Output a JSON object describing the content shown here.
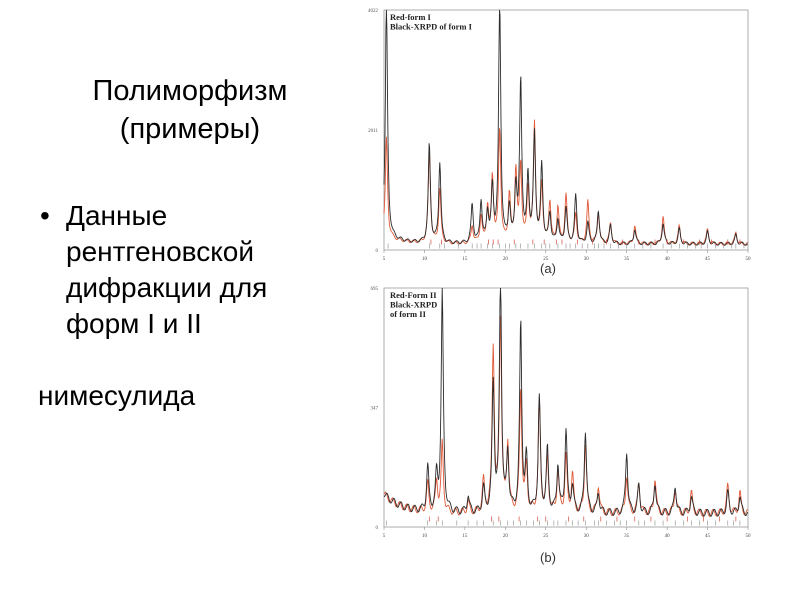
{
  "title": {
    "line1": "Полиморфизм",
    "line2": "(примеры)"
  },
  "bullet": {
    "symbol": "•",
    "lines": [
      "Данные",
      "рентгеновской",
      "дифракции для",
      "форм I и II"
    ]
  },
  "trailing": "нимесулида",
  "colors": {
    "red": "#e05a3a",
    "black": "#2b2b2b",
    "frame": "#9a9a9a",
    "tick_marks_red": "#d24a3a"
  },
  "chart_data": [
    {
      "type": "line",
      "caption": "(a)",
      "legend": [
        "Red-form I",
        "Black-XRPD of form I"
      ],
      "y_tick_labels": [
        "0",
        "2011",
        "4022"
      ],
      "x_tick_labels": [
        "5",
        "10",
        "15",
        "20",
        "25",
        "30",
        "35",
        "40",
        "45",
        "50"
      ],
      "xlim": [
        5,
        50
      ],
      "ylim": [
        0,
        4022
      ],
      "baseline_y": 100,
      "peaks": [
        {
          "x": 5.3,
          "red": 1650,
          "black": 3950
        },
        {
          "x": 10.6,
          "red": 1550,
          "black": 1650
        },
        {
          "x": 11.9,
          "red": 900,
          "black": 1350
        },
        {
          "x": 15.9,
          "red": 300,
          "black": 650
        },
        {
          "x": 17.0,
          "red": 450,
          "black": 700
        },
        {
          "x": 17.8,
          "red": 600,
          "black": 500
        },
        {
          "x": 18.4,
          "red": 1100,
          "black": 900
        },
        {
          "x": 19.3,
          "red": 1900,
          "black": 4000
        },
        {
          "x": 20.5,
          "red": 800,
          "black": 600
        },
        {
          "x": 21.3,
          "red": 1200,
          "black": 900
        },
        {
          "x": 21.9,
          "red": 1300,
          "black": 2700
        },
        {
          "x": 22.8,
          "red": 900,
          "black": 1100
        },
        {
          "x": 23.6,
          "red": 2000,
          "black": 1800
        },
        {
          "x": 24.5,
          "red": 1000,
          "black": 1300
        },
        {
          "x": 25.5,
          "red": 700,
          "black": 500
        },
        {
          "x": 26.5,
          "red": 600,
          "black": 400
        },
        {
          "x": 27.5,
          "red": 800,
          "black": 600
        },
        {
          "x": 28.7,
          "red": 500,
          "black": 800
        },
        {
          "x": 30.2,
          "red": 700,
          "black": 350
        },
        {
          "x": 31.5,
          "red": 500,
          "black": 550
        },
        {
          "x": 33.0,
          "red": 350,
          "black": 300
        },
        {
          "x": 36.0,
          "red": 300,
          "black": 250
        },
        {
          "x": 39.5,
          "red": 450,
          "black": 350
        },
        {
          "x": 41.5,
          "red": 300,
          "black": 250
        },
        {
          "x": 45.0,
          "red": 250,
          "black": 200
        },
        {
          "x": 48.5,
          "red": 200,
          "black": 150
        }
      ],
      "marker_positions": [
        5.5,
        10.6,
        11.9,
        12.5,
        14.2,
        15.9,
        16.5,
        17.0,
        17.8,
        18.4,
        19.3,
        20.0,
        20.5,
        21.3,
        21.9,
        22.8,
        23.6,
        24.5,
        25.0,
        25.5,
        26.5,
        27.5,
        28.0,
        28.7,
        29.5,
        30.2,
        31.0,
        31.5,
        32.2,
        33.0,
        34.0,
        35.0,
        36.0,
        37.0,
        38.0,
        39.5,
        40.5,
        41.5,
        42.5,
        43.5,
        44.2,
        45.0,
        46.0,
        47.0,
        48.0,
        48.5,
        49.5
      ],
      "red_marker_positions": [
        10.8,
        12.1,
        17.9,
        18.5,
        19.1,
        21.1,
        23.4,
        24.8,
        26.3,
        27.0,
        28.9,
        30.8,
        32.5,
        34.5,
        36.5,
        38.5,
        40.0,
        42.0,
        44.0,
        45.5,
        47.5,
        49.0
      ]
    },
    {
      "type": "line",
      "caption": "(b)",
      "legend": [
        "Red-Form II",
        "Black-XRPD",
        "of form II"
      ],
      "y_tick_labels": [
        "0",
        "347",
        "695"
      ],
      "x_tick_labels": [
        "5",
        "10",
        "15",
        "20",
        "25",
        "30",
        "35",
        "40",
        "45",
        "50"
      ],
      "xlim": [
        5,
        50
      ],
      "ylim": [
        0,
        695
      ],
      "baseline_y": 40,
      "peaks": [
        {
          "x": 10.4,
          "red": 80,
          "black": 130
        },
        {
          "x": 11.5,
          "red": 90,
          "black": 100
        },
        {
          "x": 12.2,
          "red": 200,
          "black": 640
        },
        {
          "x": 15.4,
          "red": 30,
          "black": 50
        },
        {
          "x": 17.3,
          "red": 90,
          "black": 70
        },
        {
          "x": 18.5,
          "red": 480,
          "black": 370
        },
        {
          "x": 19.4,
          "red": 560,
          "black": 680
        },
        {
          "x": 20.3,
          "red": 200,
          "black": 170
        },
        {
          "x": 21.9,
          "red": 360,
          "black": 550
        },
        {
          "x": 22.6,
          "red": 130,
          "black": 150
        },
        {
          "x": 24.2,
          "red": 320,
          "black": 330
        },
        {
          "x": 25.2,
          "red": 160,
          "black": 180
        },
        {
          "x": 26.5,
          "red": 120,
          "black": 140
        },
        {
          "x": 27.5,
          "red": 160,
          "black": 240
        },
        {
          "x": 28.3,
          "red": 110,
          "black": 80
        },
        {
          "x": 29.9,
          "red": 200,
          "black": 240
        },
        {
          "x": 31.5,
          "red": 80,
          "black": 60
        },
        {
          "x": 35.0,
          "red": 110,
          "black": 180
        },
        {
          "x": 36.5,
          "red": 90,
          "black": 80
        },
        {
          "x": 38.5,
          "red": 100,
          "black": 90
        },
        {
          "x": 41.0,
          "red": 70,
          "black": 80
        },
        {
          "x": 43.0,
          "red": 60,
          "black": 50
        },
        {
          "x": 47.5,
          "red": 80,
          "black": 60
        },
        {
          "x": 49.0,
          "red": 60,
          "black": 50
        }
      ],
      "marker_positions": [
        5.3,
        10.4,
        11.5,
        12.2,
        14.0,
        15.4,
        16.5,
        17.3,
        18.5,
        19.4,
        20.3,
        21.0,
        21.9,
        22.6,
        23.5,
        24.2,
        25.2,
        26.0,
        26.5,
        27.5,
        28.3,
        29.0,
        29.9,
        31.0,
        31.5,
        32.5,
        33.5,
        34.2,
        35.0,
        36.5,
        37.2,
        38.5,
        39.5,
        41.0,
        42.0,
        43.0,
        44.0,
        45.0,
        46.0,
        47.5,
        48.2,
        49.0
      ],
      "red_marker_positions": [
        10.6,
        11.7,
        18.3,
        19.2,
        21.7,
        24.0,
        25.0,
        27.8,
        29.7,
        31.8,
        33.8,
        36.0,
        38.0,
        40.0,
        42.5,
        44.5,
        46.5,
        48.5
      ]
    }
  ]
}
